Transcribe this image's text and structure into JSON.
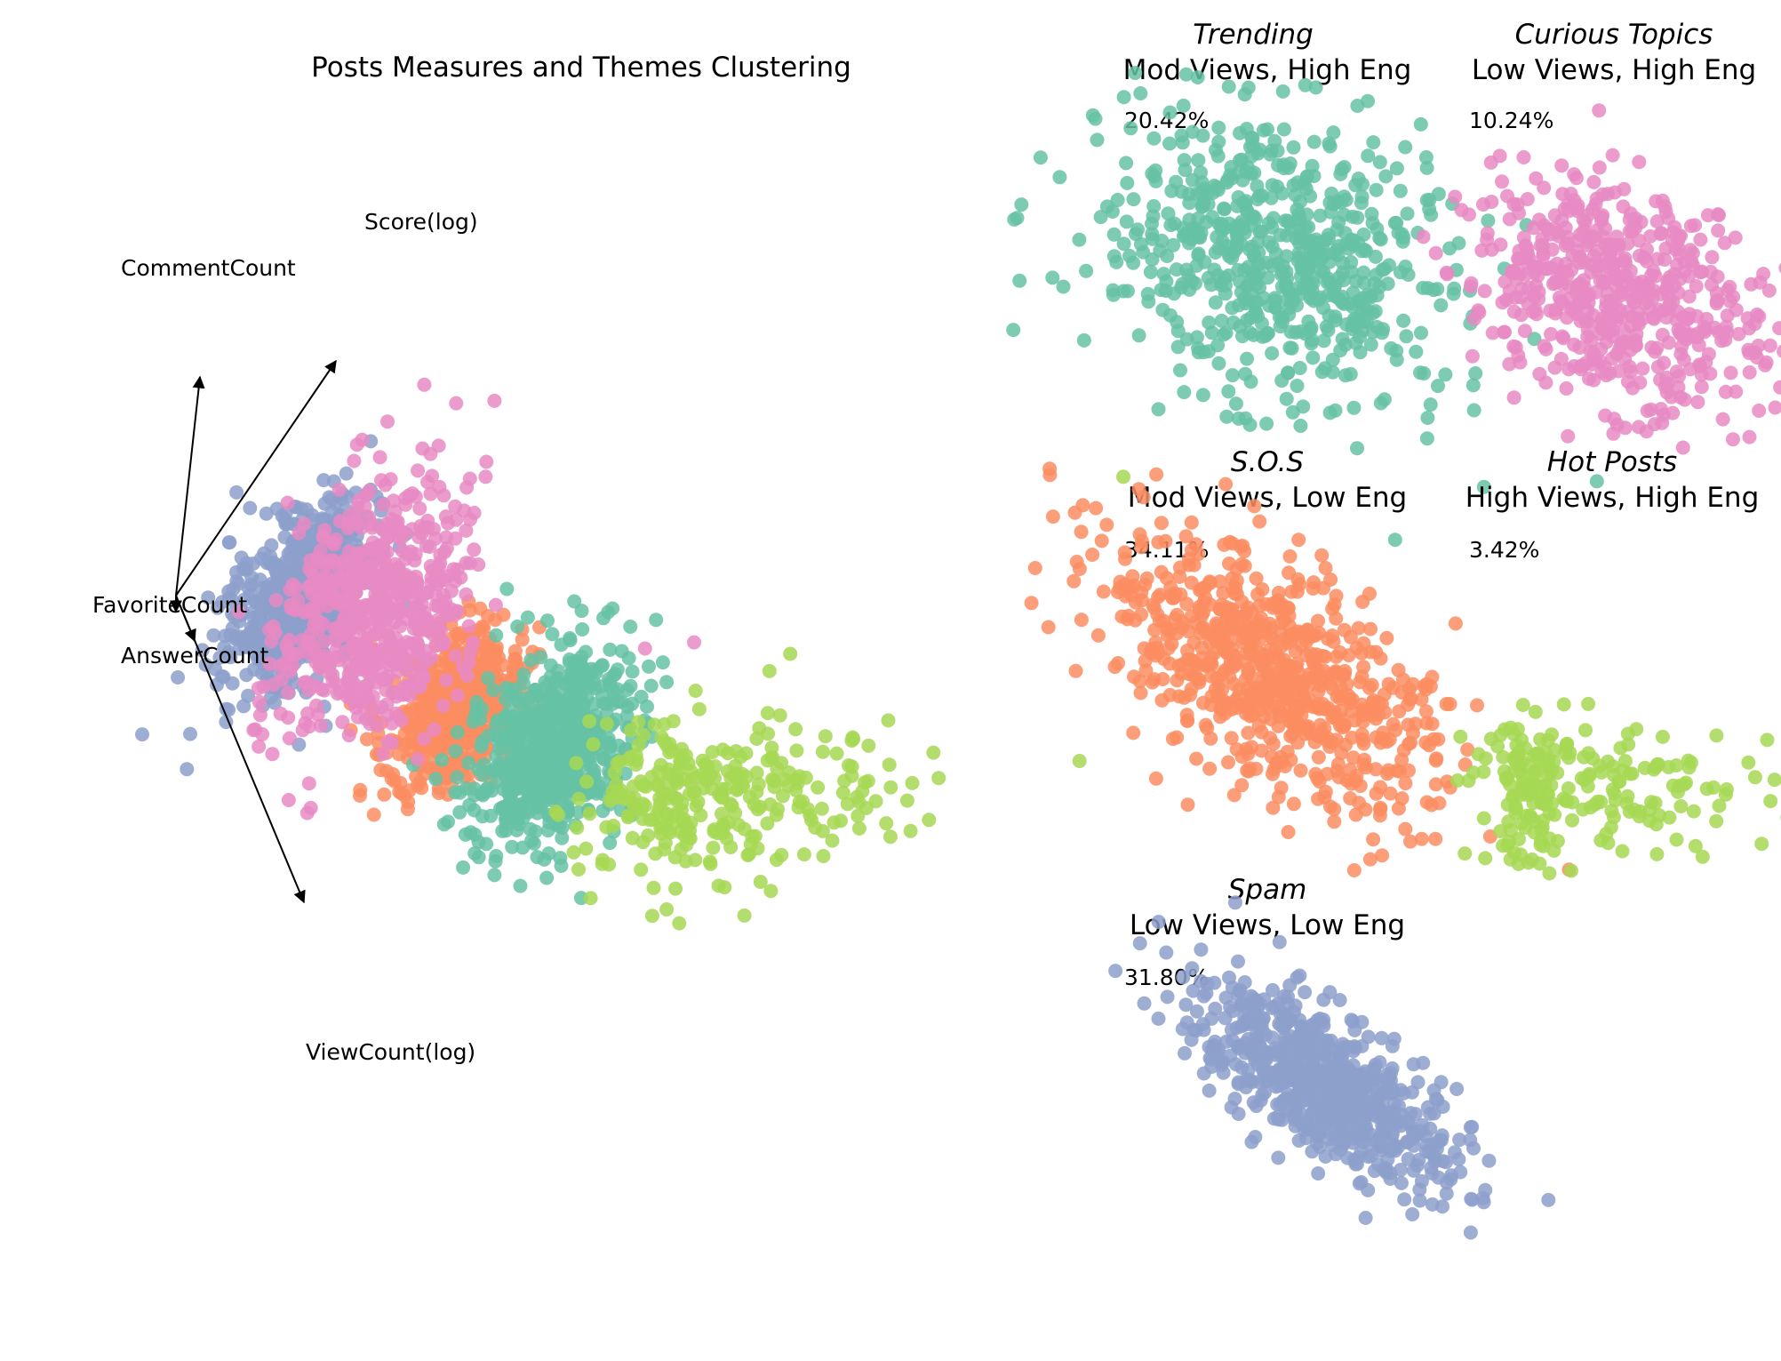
{
  "chart_data": [
    {
      "type": "scatter",
      "title": "Posts Measures and Themes Clustering",
      "description_axes": "PCA biplot, axes hidden",
      "grid": false,
      "legend": "none",
      "vectors": [
        {
          "label": "Score(log)",
          "dx": 0.6,
          "dy": 0.88
        },
        {
          "label": "CommentCount",
          "dx": 0.09,
          "dy": 0.82
        },
        {
          "label": "FavoriteCount",
          "dx": 0.0,
          "dy": -0.06
        },
        {
          "label": "AnswerCount",
          "dx": 0.07,
          "dy": -0.17
        },
        {
          "label": "ViewCount(log)",
          "dx": 0.48,
          "dy": -1.15
        }
      ],
      "clusters": [
        {
          "name": "Spam",
          "color": "#8da0cb",
          "center": [
            1.3,
            0.18
          ],
          "spread": [
            0.25,
            0.42
          ],
          "tilt": -0.5,
          "n": 700,
          "outliers": [
            [
              0.0,
              -0.95
            ]
          ]
        },
        {
          "name": "Curious Topics",
          "color": "#e78ac3",
          "center": [
            1.9,
            0.05
          ],
          "spread": [
            0.35,
            0.55
          ],
          "tilt": -0.45,
          "n": 600,
          "outliers": [
            [
              2.8,
              1.15
            ],
            [
              2.3,
              1.9
            ],
            [
              2.0,
              1.6
            ],
            [
              0.95,
              -1.05
            ],
            [
              4.1,
              -0.25
            ],
            [
              4.5,
              -0.2
            ]
          ]
        },
        {
          "name": "S.O.S",
          "color": "#fc8d62",
          "center": [
            2.55,
            -0.72
          ],
          "spread": [
            0.22,
            0.35
          ],
          "tilt": -0.55,
          "n": 550,
          "outliers": [
            [
              1.7,
              -0.7
            ],
            [
              1.85,
              -0.7
            ]
          ]
        },
        {
          "name": "Trending",
          "color": "#66c2a5",
          "center": [
            3.35,
            -1.05
          ],
          "spread": [
            0.28,
            0.45
          ],
          "tilt": -0.5,
          "n": 650,
          "outliers": [
            [
              3.4,
              -1.7
            ]
          ]
        },
        {
          "name": "Hot Posts",
          "color": "#a6d854",
          "center": [
            4.2,
            -1.45
          ],
          "spread": [
            0.9,
            0.35
          ],
          "tilt": 0.0,
          "n": 300,
          "outliers": [
            [
              8.0,
              1.15
            ]
          ]
        }
      ]
    },
    {
      "type": "scatter",
      "panels": [
        {
          "italic": "Trending",
          "subtitle": "Mod Views, High Eng",
          "percent": "20.42%",
          "color": "#66c2a5",
          "spread": [
            0.3,
            0.22
          ],
          "tilt": -0.45,
          "n": 650
        },
        {
          "italic": "Curious Topics",
          "subtitle": "Low Views, High Eng",
          "percent": "10.24%",
          "color": "#e78ac3",
          "spread": [
            0.26,
            0.17
          ],
          "tilt": -0.45,
          "n": 550
        },
        {
          "italic": "S.O.S",
          "subtitle": "Mod Views, Low Eng",
          "percent": "34.11%",
          "color": "#fc8d62",
          "spread": [
            0.33,
            0.15
          ],
          "tilt": -0.62,
          "n": 750
        },
        {
          "italic": "Hot Posts",
          "subtitle": "High Views, High Eng",
          "percent": "3.42%",
          "color": "#a6d854",
          "spread": [
            0.28,
            0.12
          ],
          "tilt": 0.0,
          "n": 230
        },
        {
          "italic": "Spam",
          "subtitle": "Low Views, Low Eng",
          "percent": "31.80%",
          "color": "#8da0cb",
          "spread": [
            0.25,
            0.1
          ],
          "tilt": -0.62,
          "n": 700
        }
      ]
    }
  ]
}
